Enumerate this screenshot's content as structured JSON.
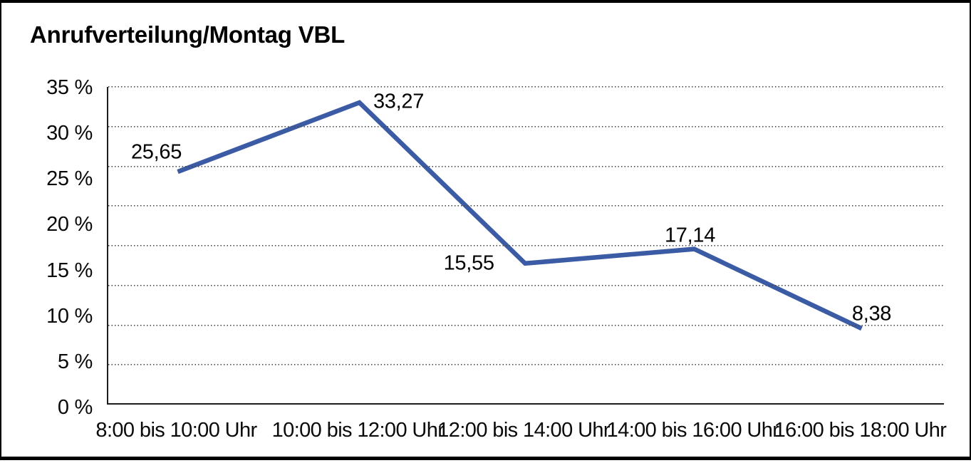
{
  "title": "Anrufverteilung/Montag VBL",
  "chart_data": {
    "type": "line",
    "title": "Anrufverteilung/Montag VBL",
    "categories": [
      "8:00 bis 10:00 Uhr",
      "10:00 bis 12:00 Uhr",
      "12:00 bis 14:00 Uhr",
      "14:00 bis 16:00 Uhr",
      "16:00 bis 18:00 Uhr"
    ],
    "values": [
      25.65,
      33.27,
      15.55,
      17.14,
      8.38
    ],
    "value_labels": [
      "25,65",
      "33,27",
      "15,55",
      "17,14",
      "8,38"
    ],
    "y_tick_labels": [
      "35 %",
      "30 %",
      "25 %",
      "20 %",
      "15 %",
      "10 %",
      "5 %",
      "0 %"
    ],
    "y_tick_values": [
      35,
      30,
      25,
      20,
      15,
      10,
      5,
      0
    ],
    "ylim": [
      0,
      35
    ],
    "xlabel": "",
    "ylabel": "",
    "legend": "none",
    "grid": "horizontal-dotted",
    "line_color": "#3B5BA4"
  }
}
